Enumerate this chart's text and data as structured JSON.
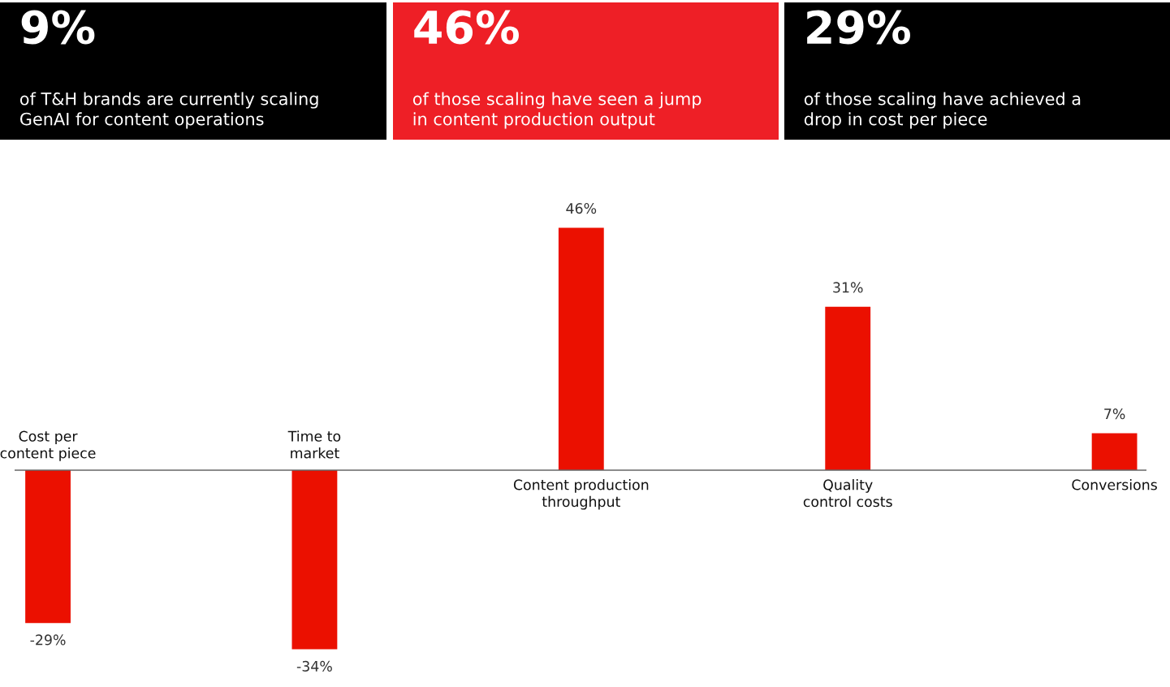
{
  "chart_data": [
    {
      "type": "other",
      "title": "9%",
      "subtitle": "of T&H brands are currently scaling\nGenAI for content operations",
      "color": "#000000"
    },
    {
      "type": "other",
      "title": "46%",
      "subtitle": "of those scaling have seen a jump\nin content production output",
      "color": "#ee1f26"
    },
    {
      "type": "other",
      "title": "29%",
      "subtitle": "of those scaling have achieved a\ndrop in cost per piece",
      "color": "#000000"
    },
    {
      "type": "bar",
      "categories": [
        "Cost per\ncontent piece",
        "Time to\nmarket",
        "Content production\nthroughput",
        "Quality\ncontrol costs",
        "Conversions"
      ],
      "values": [
        -29,
        -34,
        46,
        31,
        7
      ],
      "value_labels": [
        "-29%",
        "-34%",
        "46%",
        "31%",
        "7%"
      ],
      "color": "#eb1000"
    }
  ]
}
